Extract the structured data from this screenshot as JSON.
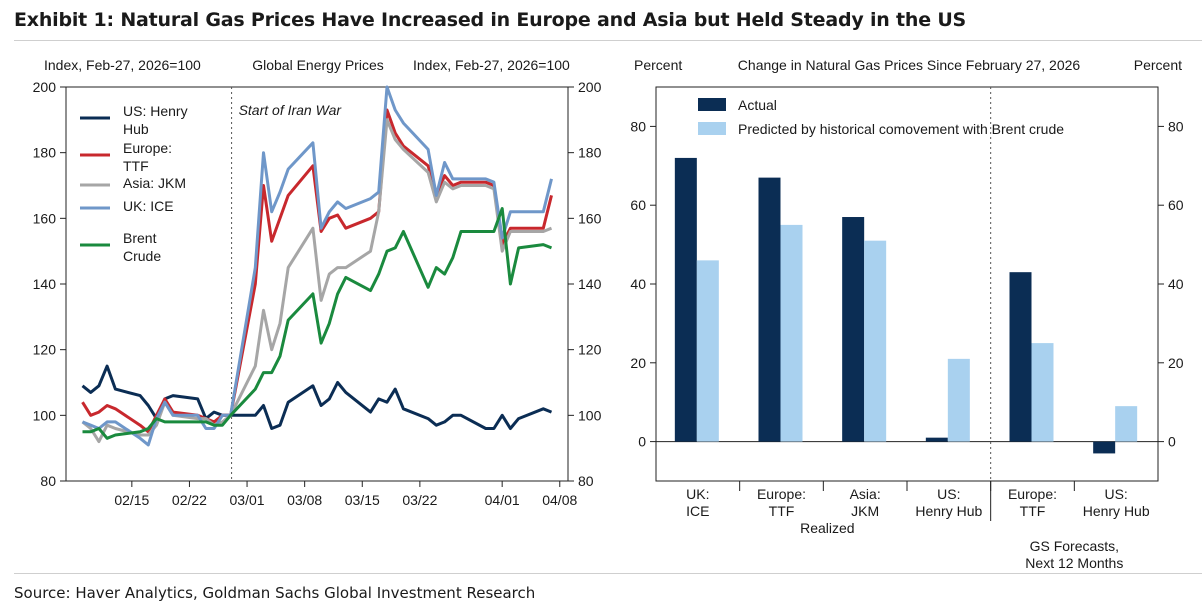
{
  "title": "Exhibit 1: Natural Gas Prices Have Increased in Europe and Asia but Held Steady in the US",
  "source": "Source: Haver Analytics, Goldman Sachs Global Investment Research",
  "colors": {
    "henry_hub": "#0b2d54",
    "ttf": "#c8282d",
    "jkm": "#a6a6a6",
    "ice": "#6f97c9",
    "brent": "#1a8a3e",
    "actual": "#0b2d54",
    "predicted": "#a9d1ef"
  },
  "chart_data": [
    {
      "type": "line",
      "title": "Global Energy Prices",
      "ylabel_left": "Index, Feb-27, 2026=100",
      "ylabel_right": "Index, Feb-27, 2026=100",
      "ylim_left": [
        80,
        200
      ],
      "ylim_right": [
        80,
        200
      ],
      "yticks": [
        80,
        100,
        120,
        140,
        160,
        180,
        200
      ],
      "xlim": [
        "2026-02-07",
        "2026-04-09"
      ],
      "xticks": [
        "2026-02-15",
        "2026-02-22",
        "2026-03-01",
        "2026-03-08",
        "2026-03-15",
        "2026-03-22",
        "2026-04-01",
        "2026-04-08"
      ],
      "xtick_labels": [
        "02/15",
        "02/22",
        "03/01",
        "03/08",
        "03/15",
        "03/22",
        "04/01",
        "04/08"
      ],
      "annotation": "Start of Iran War",
      "annotation_x": "2026-02-27",
      "grid": false,
      "legend_position": "top-left",
      "series": [
        {
          "name": "US: Henry Hub",
          "color_key": "henry_hub",
          "x": [
            "2026-02-09",
            "2026-02-10",
            "2026-02-11",
            "2026-02-12",
            "2026-02-13",
            "2026-02-16",
            "2026-02-17",
            "2026-02-18",
            "2026-02-19",
            "2026-02-20",
            "2026-02-23",
            "2026-02-24",
            "2026-02-25",
            "2026-02-26",
            "2026-02-27",
            "2026-03-02",
            "2026-03-03",
            "2026-03-04",
            "2026-03-05",
            "2026-03-06",
            "2026-03-09",
            "2026-03-10",
            "2026-03-11",
            "2026-03-12",
            "2026-03-13",
            "2026-03-16",
            "2026-03-17",
            "2026-03-18",
            "2026-03-19",
            "2026-03-20",
            "2026-03-23",
            "2026-03-24",
            "2026-03-25",
            "2026-03-26",
            "2026-03-27",
            "2026-03-30",
            "2026-03-31",
            "2026-04-01",
            "2026-04-02",
            "2026-04-03",
            "2026-04-06",
            "2026-04-07"
          ],
          "values": [
            109,
            107,
            109,
            115,
            108,
            106,
            103,
            99,
            105,
            106,
            105,
            99,
            101,
            100,
            100,
            100,
            103,
            96,
            97,
            104,
            109,
            103,
            105,
            110,
            107,
            101,
            105,
            104,
            108,
            102,
            99,
            97,
            98,
            100,
            100,
            96,
            96,
            100,
            96,
            99,
            102,
            101
          ]
        },
        {
          "name": "Europe: TTF",
          "color_key": "ttf",
          "x": [
            "2026-02-09",
            "2026-02-10",
            "2026-02-11",
            "2026-02-12",
            "2026-02-13",
            "2026-02-16",
            "2026-02-17",
            "2026-02-18",
            "2026-02-19",
            "2026-02-20",
            "2026-02-23",
            "2026-02-24",
            "2026-02-25",
            "2026-02-26",
            "2026-02-27",
            "2026-03-02",
            "2026-03-03",
            "2026-03-04",
            "2026-03-05",
            "2026-03-06",
            "2026-03-09",
            "2026-03-10",
            "2026-03-11",
            "2026-03-12",
            "2026-03-13",
            "2026-03-16",
            "2026-03-17",
            "2026-03-18",
            "2026-03-19",
            "2026-03-20",
            "2026-03-23",
            "2026-03-24",
            "2026-03-25",
            "2026-03-26",
            "2026-03-27",
            "2026-03-30",
            "2026-03-31",
            "2026-04-01",
            "2026-04-02",
            "2026-04-03",
            "2026-04-06",
            "2026-04-07"
          ],
          "values": [
            104,
            100,
            101,
            103,
            102,
            97,
            95,
            100,
            105,
            101,
            100,
            99,
            98,
            100,
            100,
            140,
            170,
            153,
            160,
            167,
            176,
            156,
            160,
            161,
            157,
            160,
            162,
            193,
            186,
            182,
            176,
            167,
            173,
            170,
            171,
            171,
            170,
            152,
            157,
            157,
            157,
            167
          ]
        },
        {
          "name": "Asia: JKM",
          "color_key": "jkm",
          "x": [
            "2026-02-09",
            "2026-02-10",
            "2026-02-11",
            "2026-02-12",
            "2026-02-13",
            "2026-02-16",
            "2026-02-17",
            "2026-02-18",
            "2026-02-19",
            "2026-02-20",
            "2026-02-23",
            "2026-02-24",
            "2026-02-25",
            "2026-02-26",
            "2026-02-27",
            "2026-03-02",
            "2026-03-03",
            "2026-03-04",
            "2026-03-05",
            "2026-03-06",
            "2026-03-09",
            "2026-03-10",
            "2026-03-11",
            "2026-03-12",
            "2026-03-13",
            "2026-03-16",
            "2026-03-17",
            "2026-03-18",
            "2026-03-19",
            "2026-03-20",
            "2026-03-23",
            "2026-03-24",
            "2026-03-25",
            "2026-03-26",
            "2026-03-27",
            "2026-03-30",
            "2026-03-31",
            "2026-04-01",
            "2026-04-02",
            "2026-04-03",
            "2026-04-06",
            "2026-04-07"
          ],
          "values": [
            98,
            96,
            92,
            97,
            96,
            94,
            94,
            97,
            104,
            100,
            99,
            99,
            97,
            98,
            100,
            115,
            132,
            120,
            128,
            145,
            157,
            135,
            143,
            145,
            145,
            150,
            162,
            190,
            184,
            181,
            174,
            165,
            171,
            169,
            170,
            170,
            169,
            150,
            156,
            156,
            156,
            157
          ]
        },
        {
          "name": "UK: ICE",
          "color_key": "ice",
          "x": [
            "2026-02-09",
            "2026-02-10",
            "2026-02-11",
            "2026-02-12",
            "2026-02-13",
            "2026-02-16",
            "2026-02-17",
            "2026-02-18",
            "2026-02-19",
            "2026-02-20",
            "2026-02-23",
            "2026-02-24",
            "2026-02-25",
            "2026-02-26",
            "2026-02-27",
            "2026-03-02",
            "2026-03-03",
            "2026-03-04",
            "2026-03-05",
            "2026-03-06",
            "2026-03-09",
            "2026-03-10",
            "2026-03-11",
            "2026-03-12",
            "2026-03-13",
            "2026-03-16",
            "2026-03-17",
            "2026-03-18",
            "2026-03-19",
            "2026-03-20",
            "2026-03-23",
            "2026-03-24",
            "2026-03-25",
            "2026-03-26",
            "2026-03-27",
            "2026-03-30",
            "2026-03-31",
            "2026-04-01",
            "2026-04-02",
            "2026-04-03",
            "2026-04-06",
            "2026-04-07"
          ],
          "values": [
            98,
            97,
            96,
            98,
            98,
            93,
            91,
            99,
            104,
            100,
            100,
            96,
            96,
            100,
            100,
            145,
            180,
            162,
            168,
            175,
            183,
            157,
            162,
            165,
            163,
            166,
            168,
            200,
            193,
            189,
            181,
            167,
            177,
            172,
            172,
            172,
            171,
            154,
            162,
            162,
            162,
            172
          ]
        },
        {
          "name": "Brent Crude",
          "color_key": "brent",
          "x": [
            "2026-02-09",
            "2026-02-10",
            "2026-02-11",
            "2026-02-12",
            "2026-02-13",
            "2026-02-16",
            "2026-02-17",
            "2026-02-18",
            "2026-02-19",
            "2026-02-20",
            "2026-02-23",
            "2026-02-24",
            "2026-02-25",
            "2026-02-26",
            "2026-02-27",
            "2026-03-02",
            "2026-03-03",
            "2026-03-04",
            "2026-03-05",
            "2026-03-06",
            "2026-03-09",
            "2026-03-10",
            "2026-03-11",
            "2026-03-12",
            "2026-03-13",
            "2026-03-16",
            "2026-03-17",
            "2026-03-18",
            "2026-03-19",
            "2026-03-20",
            "2026-03-23",
            "2026-03-24",
            "2026-03-25",
            "2026-03-26",
            "2026-03-27",
            "2026-03-30",
            "2026-03-31",
            "2026-04-01",
            "2026-04-02",
            "2026-04-03",
            "2026-04-06",
            "2026-04-07"
          ],
          "values": [
            95,
            95,
            96,
            93,
            94,
            95,
            96,
            99,
            98,
            98,
            98,
            98,
            97,
            97,
            100,
            108,
            113,
            113,
            118,
            129,
            137,
            122,
            128,
            137,
            142,
            138,
            143,
            150,
            151,
            156,
            139,
            145,
            143,
            148,
            156,
            156,
            156,
            163,
            140,
            151,
            152,
            151
          ]
        }
      ]
    },
    {
      "type": "bar",
      "title": "Change in Natural Gas Prices Since February 27, 2026",
      "ylabel_left": "Percent",
      "ylabel_right": "Percent",
      "ylim": [
        -10,
        90
      ],
      "yticks": [
        0,
        20,
        40,
        60,
        80
      ],
      "categories": [
        "UK:\nICE",
        "Europe:\nTTF",
        "Asia:\nJKM",
        "US:\nHenry Hub",
        "Europe:\nTTF",
        "US:\nHenry Hub"
      ],
      "groups": [
        {
          "label": "Realized",
          "count": 4
        },
        {
          "label": "GS Forecasts,\nNext 12 Months",
          "count": 2
        }
      ],
      "legend_position": "top",
      "series": [
        {
          "name": "Actual",
          "color_key": "actual",
          "values": [
            72,
            67,
            57,
            1,
            43,
            -3
          ]
        },
        {
          "name": "Predicted by historical comovement with Brent crude",
          "color_key": "predicted",
          "values": [
            46,
            55,
            51,
            21,
            25,
            9
          ]
        }
      ]
    }
  ]
}
